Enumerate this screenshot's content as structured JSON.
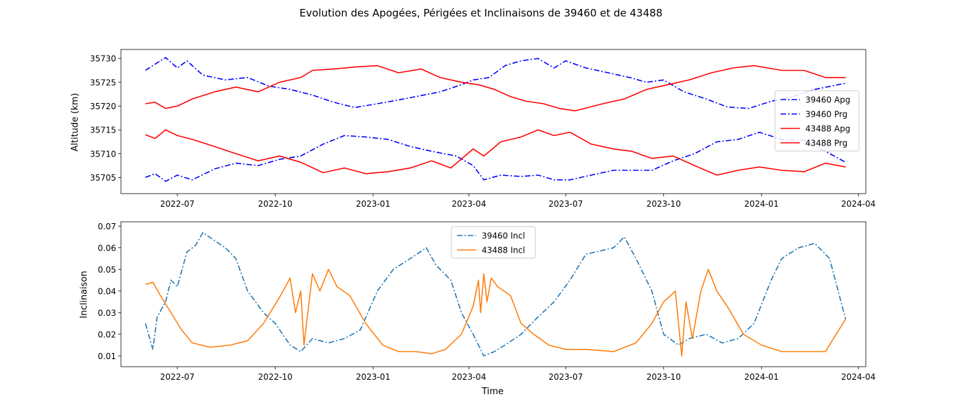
{
  "figure_title": "Evolution des Apogées, Périgées et Inclinaisons de 39460 et de 43488",
  "chart_data": [
    {
      "type": "line",
      "title": "",
      "xlabel": "",
      "ylabel": "Altitude (km)",
      "x_axis_type": "date",
      "xlim": [
        "2022-05-09",
        "2024-04-08"
      ],
      "ylim": [
        35701.6,
        35731.9
      ],
      "xticks": [
        "2022-07",
        "2022-10",
        "2023-01",
        "2023-04",
        "2023-07",
        "2023-10",
        "2024-01",
        "2024-04"
      ],
      "yticks": [
        35705,
        35710,
        35715,
        35720,
        35725,
        35730
      ],
      "grid": false,
      "legend": "center-right",
      "series": [
        {
          "name": "39460 Apg",
          "color": "#0000ff",
          "style": "dashdot",
          "x": [
            "2022-06-01",
            "2022-06-10",
            "2022-06-20",
            "2022-07-01",
            "2022-07-10",
            "2022-07-25",
            "2022-08-15",
            "2022-09-05",
            "2022-09-25",
            "2022-10-15",
            "2022-11-05",
            "2022-11-25",
            "2022-12-15",
            "2023-01-05",
            "2023-01-25",
            "2023-02-15",
            "2023-03-05",
            "2023-03-25",
            "2023-04-05",
            "2023-04-20",
            "2023-05-05",
            "2023-05-20",
            "2023-06-05",
            "2023-06-20",
            "2023-07-01",
            "2023-07-20",
            "2023-08-10",
            "2023-08-30",
            "2023-09-15",
            "2023-10-01",
            "2023-10-20",
            "2023-11-10",
            "2023-11-30",
            "2023-12-20",
            "2024-01-10",
            "2024-01-30",
            "2024-02-20",
            "2024-03-20"
          ],
          "y": [
            35727.5,
            35728.8,
            35730.2,
            35728,
            35729.5,
            35726.5,
            35725.5,
            35726,
            35724.2,
            35723.5,
            35722.3,
            35720.8,
            35719.7,
            35720.5,
            35721.3,
            35722.2,
            35723,
            35724.5,
            35725.5,
            35726,
            35728.5,
            35729.5,
            35730,
            35728,
            35729.5,
            35728,
            35727,
            35726,
            35725,
            35725.5,
            35723,
            35721.5,
            35719.8,
            35719.5,
            35721,
            35722,
            35723.5,
            35724.8
          ]
        },
        {
          "name": "39460 Prg",
          "color": "#0000ff",
          "style": "dashdot",
          "x": [
            "2022-06-01",
            "2022-06-10",
            "2022-06-20",
            "2022-07-01",
            "2022-07-15",
            "2022-08-05",
            "2022-08-25",
            "2022-09-15",
            "2022-10-05",
            "2022-10-25",
            "2022-11-15",
            "2022-12-05",
            "2022-12-25",
            "2023-01-15",
            "2023-02-05",
            "2023-02-25",
            "2023-03-20",
            "2023-04-05",
            "2023-04-15",
            "2023-05-01",
            "2023-05-20",
            "2023-06-05",
            "2023-06-20",
            "2023-07-05",
            "2023-07-25",
            "2023-08-15",
            "2023-09-01",
            "2023-09-20",
            "2023-10-10",
            "2023-10-30",
            "2023-11-20",
            "2023-12-10",
            "2023-12-30",
            "2024-01-20",
            "2024-02-10",
            "2024-03-01",
            "2024-03-20"
          ],
          "y": [
            35705,
            35705.8,
            35704.2,
            35705.5,
            35704.5,
            35706.8,
            35708,
            35707.5,
            35708.8,
            35709.5,
            35712,
            35713.8,
            35713.5,
            35713,
            35711.5,
            35710.5,
            35709.5,
            35707.5,
            35704.5,
            35705.5,
            35705.2,
            35705.5,
            35704.5,
            35704.5,
            35705.5,
            35706.5,
            35706.5,
            35706.5,
            35708.5,
            35710,
            35712.5,
            35713,
            35714.5,
            35713,
            35712.8,
            35710.5,
            35708.2
          ]
        },
        {
          "name": "43488 Apg",
          "color": "#ff0000",
          "style": "solid",
          "x": [
            "2022-06-01",
            "2022-06-10",
            "2022-06-20",
            "2022-07-01",
            "2022-07-15",
            "2022-08-05",
            "2022-08-25",
            "2022-09-15",
            "2022-10-05",
            "2022-10-25",
            "2022-11-05",
            "2022-11-25",
            "2022-12-15",
            "2023-01-05",
            "2023-01-25",
            "2023-02-15",
            "2023-03-05",
            "2023-03-25",
            "2023-04-10",
            "2023-04-25",
            "2023-05-10",
            "2023-05-25",
            "2023-06-10",
            "2023-06-25",
            "2023-07-10",
            "2023-08-05",
            "2023-08-25",
            "2023-09-15",
            "2023-10-05",
            "2023-10-25",
            "2023-11-15",
            "2023-12-05",
            "2023-12-25",
            "2024-01-20",
            "2024-02-10",
            "2024-03-01",
            "2024-03-20"
          ],
          "y": [
            35720.5,
            35720.8,
            35719.5,
            35720,
            35721.5,
            35723,
            35724,
            35723,
            35725,
            35726,
            35727.5,
            35727.8,
            35728.2,
            35728.5,
            35727,
            35727.8,
            35726,
            35725,
            35724.5,
            35723.5,
            35722,
            35721,
            35720.5,
            35719.5,
            35719,
            35720.5,
            35721.5,
            35723.5,
            35724.5,
            35725.5,
            35727,
            35728,
            35728.5,
            35727.5,
            35727.5,
            35726,
            35726
          ]
        },
        {
          "name": "43488 Prg",
          "color": "#ff0000",
          "style": "solid",
          "x": [
            "2022-06-01",
            "2022-06-10",
            "2022-06-20",
            "2022-07-01",
            "2022-07-15",
            "2022-08-05",
            "2022-08-25",
            "2022-09-15",
            "2022-10-05",
            "2022-10-25",
            "2022-11-15",
            "2022-12-05",
            "2022-12-25",
            "2023-01-15",
            "2023-02-05",
            "2023-02-25",
            "2023-03-15",
            "2023-04-05",
            "2023-04-15",
            "2023-05-01",
            "2023-05-20",
            "2023-06-05",
            "2023-06-20",
            "2023-07-05",
            "2023-07-25",
            "2023-08-15",
            "2023-09-01",
            "2023-09-20",
            "2023-10-10",
            "2023-10-30",
            "2023-11-20",
            "2023-12-10",
            "2023-12-30",
            "2024-01-20",
            "2024-02-10",
            "2024-03-01",
            "2024-03-20"
          ],
          "y": [
            35714,
            35713.2,
            35715,
            35713.8,
            35713,
            35711.5,
            35710,
            35708.5,
            35709.5,
            35708.2,
            35706,
            35707,
            35705.8,
            35706.2,
            35707,
            35708.5,
            35707,
            35711,
            35709.5,
            35712.5,
            35713.5,
            35715,
            35713.8,
            35714.5,
            35712,
            35711,
            35710.5,
            35709,
            35709.5,
            35707.5,
            35705.5,
            35706.5,
            35707.2,
            35706.5,
            35706.2,
            35708,
            35707.2
          ]
        }
      ]
    },
    {
      "type": "line",
      "title": "",
      "xlabel": "Time",
      "ylabel": "Inclinaison",
      "x_axis_type": "date",
      "xlim": [
        "2022-05-09",
        "2024-04-08"
      ],
      "ylim": [
        0.005,
        0.072
      ],
      "xticks": [
        "2022-07",
        "2022-10",
        "2023-01",
        "2023-04",
        "2023-07",
        "2023-10",
        "2024-01",
        "2024-04"
      ],
      "yticks": [
        0.01,
        0.02,
        0.03,
        0.04,
        0.05,
        0.06,
        0.07
      ],
      "grid": false,
      "legend": "top-center",
      "series": [
        {
          "name": "39460 Incl",
          "color": "#1f77b4",
          "style": "dashdot",
          "x": [
            "2022-06-01",
            "2022-06-08",
            "2022-06-12",
            "2022-06-20",
            "2022-06-25",
            "2022-07-01",
            "2022-07-10",
            "2022-07-18",
            "2022-07-25",
            "2022-08-15",
            "2022-08-25",
            "2022-09-05",
            "2022-09-20",
            "2022-10-01",
            "2022-10-15",
            "2022-10-25",
            "2022-11-05",
            "2022-11-20",
            "2022-12-05",
            "2022-12-20",
            "2023-01-05",
            "2023-01-20",
            "2023-02-05",
            "2023-02-20",
            "2023-03-01",
            "2023-03-15",
            "2023-03-25",
            "2023-04-05",
            "2023-04-15",
            "2023-04-25",
            "2023-05-05",
            "2023-05-20",
            "2023-06-05",
            "2023-06-20",
            "2023-07-05",
            "2023-07-20",
            "2023-08-15",
            "2023-08-25",
            "2023-09-05",
            "2023-09-20",
            "2023-10-01",
            "2023-10-15",
            "2023-10-25",
            "2023-11-10",
            "2023-11-25",
            "2023-12-10",
            "2023-12-25",
            "2024-01-10",
            "2024-01-20",
            "2024-02-05",
            "2024-02-20",
            "2024-03-05",
            "2024-03-20"
          ],
          "y": [
            0.025,
            0.013,
            0.028,
            0.035,
            0.045,
            0.042,
            0.058,
            0.061,
            0.067,
            0.06,
            0.055,
            0.04,
            0.03,
            0.025,
            0.015,
            0.012,
            0.018,
            0.016,
            0.018,
            0.022,
            0.04,
            0.05,
            0.055,
            0.06,
            0.052,
            0.045,
            0.03,
            0.02,
            0.01,
            0.012,
            0.015,
            0.02,
            0.028,
            0.035,
            0.045,
            0.057,
            0.06,
            0.065,
            0.055,
            0.04,
            0.02,
            0.015,
            0.018,
            0.02,
            0.016,
            0.018,
            0.025,
            0.045,
            0.055,
            0.06,
            0.062,
            0.055,
            0.027
          ]
        },
        {
          "name": "43488 Incl",
          "color": "#ff7f0e",
          "style": "solid",
          "x": [
            "2022-06-01",
            "2022-06-08",
            "2022-06-15",
            "2022-06-25",
            "2022-07-05",
            "2022-07-15",
            "2022-08-01",
            "2022-08-20",
            "2022-09-05",
            "2022-09-20",
            "2022-10-05",
            "2022-10-15",
            "2022-10-20",
            "2022-10-25",
            "2022-10-28",
            "2022-11-05",
            "2022-11-12",
            "2022-11-20",
            "2022-11-28",
            "2022-12-10",
            "2022-12-25",
            "2023-01-10",
            "2023-01-25",
            "2023-02-10",
            "2023-02-25",
            "2023-03-10",
            "2023-03-25",
            "2023-04-05",
            "2023-04-10",
            "2023-04-12",
            "2023-04-15",
            "2023-04-18",
            "2023-04-22",
            "2023-04-28",
            "2023-05-10",
            "2023-05-20",
            "2023-06-01",
            "2023-06-15",
            "2023-07-01",
            "2023-07-20",
            "2023-08-15",
            "2023-09-05",
            "2023-09-20",
            "2023-10-01",
            "2023-10-08",
            "2023-10-12",
            "2023-10-18",
            "2023-10-22",
            "2023-10-28",
            "2023-11-05",
            "2023-11-12",
            "2023-11-20",
            "2023-12-01",
            "2023-12-15",
            "2024-01-01",
            "2024-01-20",
            "2024-02-10",
            "2024-03-01",
            "2024-03-20"
          ],
          "y": [
            0.043,
            0.044,
            0.038,
            0.03,
            0.022,
            0.016,
            0.014,
            0.015,
            0.017,
            0.025,
            0.037,
            0.046,
            0.03,
            0.04,
            0.015,
            0.048,
            0.04,
            0.05,
            0.042,
            0.038,
            0.025,
            0.015,
            0.012,
            0.012,
            0.011,
            0.013,
            0.02,
            0.033,
            0.045,
            0.03,
            0.048,
            0.035,
            0.046,
            0.042,
            0.038,
            0.025,
            0.02,
            0.015,
            0.013,
            0.013,
            0.012,
            0.016,
            0.025,
            0.035,
            0.038,
            0.04,
            0.01,
            0.035,
            0.018,
            0.04,
            0.05,
            0.04,
            0.032,
            0.02,
            0.015,
            0.012,
            0.012,
            0.012,
            0.027
          ]
        }
      ]
    }
  ]
}
